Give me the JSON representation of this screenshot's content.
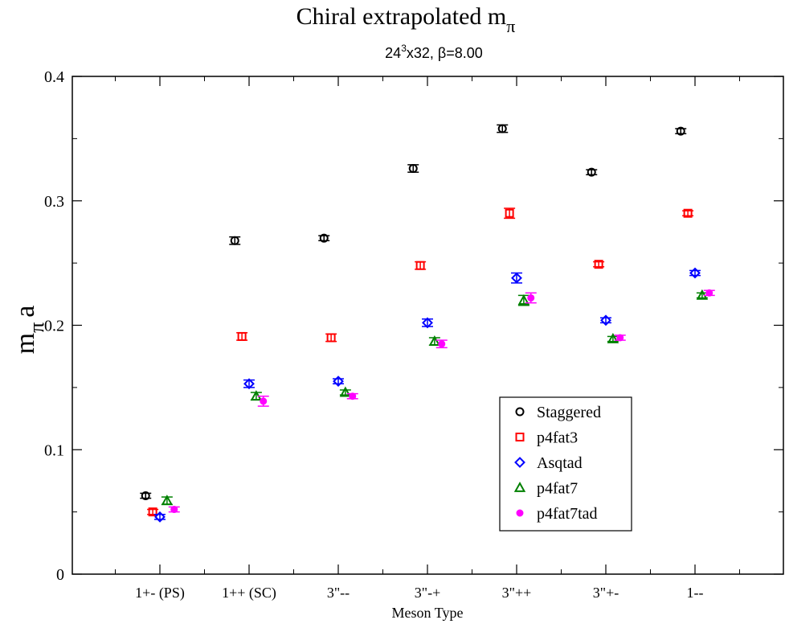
{
  "chart_data": {
    "type": "scatter",
    "title": "Chiral extrapolated m",
    "title_subscript": "π",
    "subtitle_pre": "24",
    "subtitle_sup": "3",
    "subtitle_post": "x32, β=8.00",
    "xlabel": "Meson Type",
    "ylabel": "m",
    "ylabel_subscript": "π",
    "ylabel_suffix": "a",
    "ylim": [
      0,
      0.4
    ],
    "yticks": [
      {
        "v": 0,
        "label": "0"
      },
      {
        "v": 0.1,
        "label": "0.1"
      },
      {
        "v": 0.2,
        "label": "0.2"
      },
      {
        "v": 0.3,
        "label": "0.3"
      },
      {
        "v": 0.4,
        "label": "0.4"
      }
    ],
    "categories": [
      "1+- (PS)",
      "1++ (SC)",
      "3\"--",
      "3\"-+",
      "3\"++",
      "3\"+-",
      "1--"
    ],
    "legend_position": "lower-right",
    "series": [
      {
        "name": "Staggered",
        "marker": "circle",
        "color": "#000000",
        "offset": -0.2,
        "values": [
          0.063,
          0.268,
          0.27,
          0.326,
          0.358,
          0.323,
          0.356
        ],
        "errors": [
          0.002,
          0.003,
          0.002,
          0.003,
          0.003,
          0.002,
          0.002
        ]
      },
      {
        "name": "p4fat3",
        "marker": "square",
        "color": "#ff0000",
        "offset": -0.1,
        "values": [
          0.05,
          0.191,
          0.19,
          0.248,
          0.29,
          0.249,
          0.29
        ],
        "errors": [
          0.002,
          0.003,
          0.003,
          0.003,
          0.004,
          0.002,
          0.002
        ]
      },
      {
        "name": "Asqtad",
        "marker": "diamond",
        "color": "#0000ff",
        "offset": 0.0,
        "values": [
          0.046,
          0.153,
          0.155,
          0.202,
          0.238,
          0.204,
          0.242
        ],
        "errors": [
          0.002,
          0.003,
          0.002,
          0.003,
          0.004,
          0.002,
          0.002
        ]
      },
      {
        "name": "p4fat7",
        "marker": "triangle",
        "color": "#008000",
        "offset": 0.1,
        "values": [
          0.059,
          0.143,
          0.146,
          0.187,
          0.22,
          0.189,
          0.224
        ],
        "errors": [
          0.003,
          0.003,
          0.002,
          0.003,
          0.004,
          0.002,
          0.002
        ]
      },
      {
        "name": "p4fat7tad",
        "marker": "dot",
        "color": "#ff00ff",
        "offset": 0.2,
        "values": [
          0.052,
          0.139,
          0.143,
          0.185,
          0.222,
          0.19,
          0.226
        ],
        "errors": [
          0.002,
          0.004,
          0.002,
          0.003,
          0.004,
          0.002,
          0.002
        ]
      }
    ]
  }
}
